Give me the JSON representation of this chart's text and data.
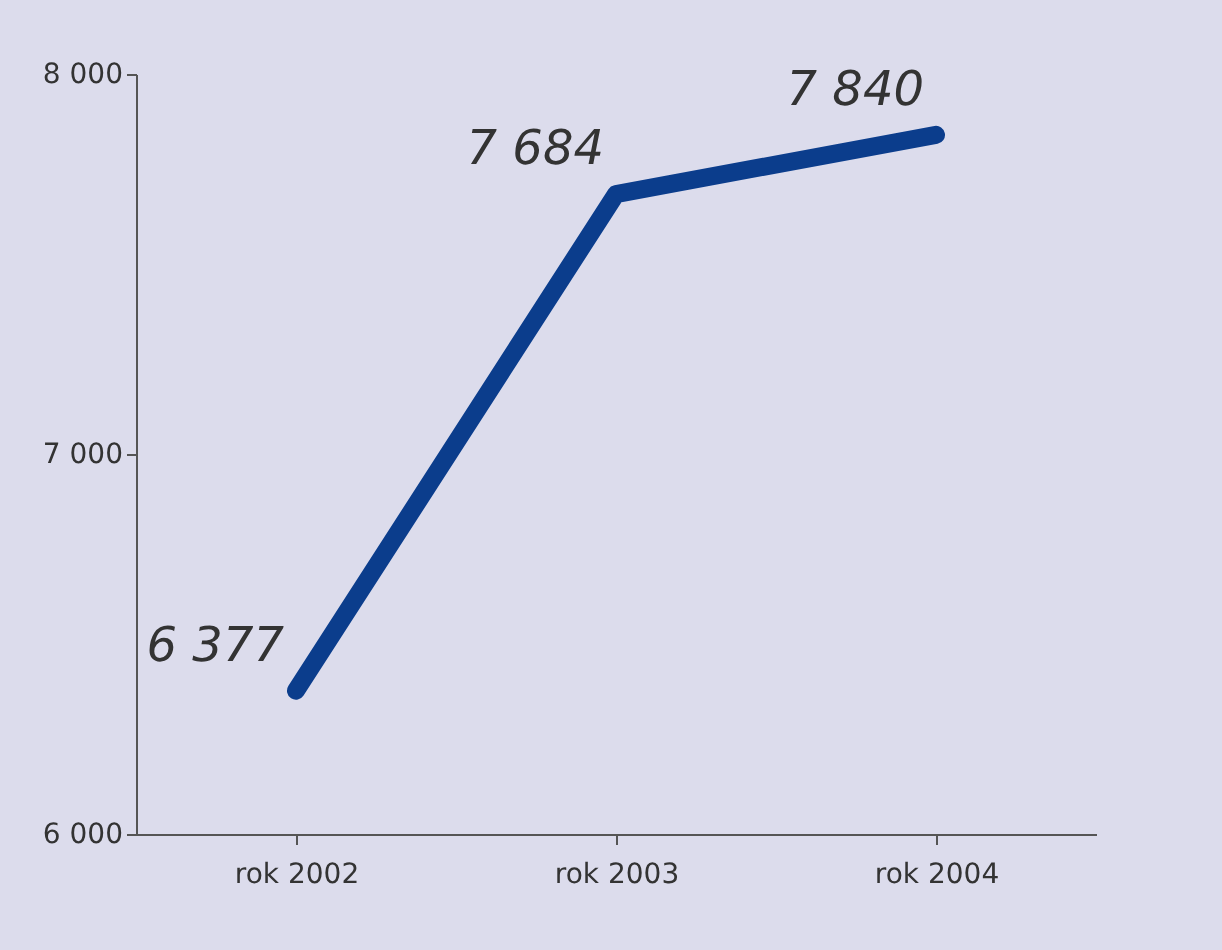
{
  "chart_data": {
    "type": "line",
    "categories": [
      "rok 2002",
      "rok 2003",
      "rok 2004"
    ],
    "series": [
      {
        "color": "#0b3d8c",
        "values": [
          6377,
          7684,
          7840
        ],
        "value_labels": [
          "6 377",
          "7 684",
          "7 840"
        ]
      }
    ],
    "ylim": [
      6000,
      8000
    ],
    "yticks": [
      {
        "value": 6000,
        "label": "6 000"
      },
      {
        "value": 7000,
        "label": "7 000"
      },
      {
        "value": 8000,
        "label": "8 000"
      }
    ],
    "grid": false,
    "legend": false,
    "marker": "none",
    "line_style": "solid"
  }
}
